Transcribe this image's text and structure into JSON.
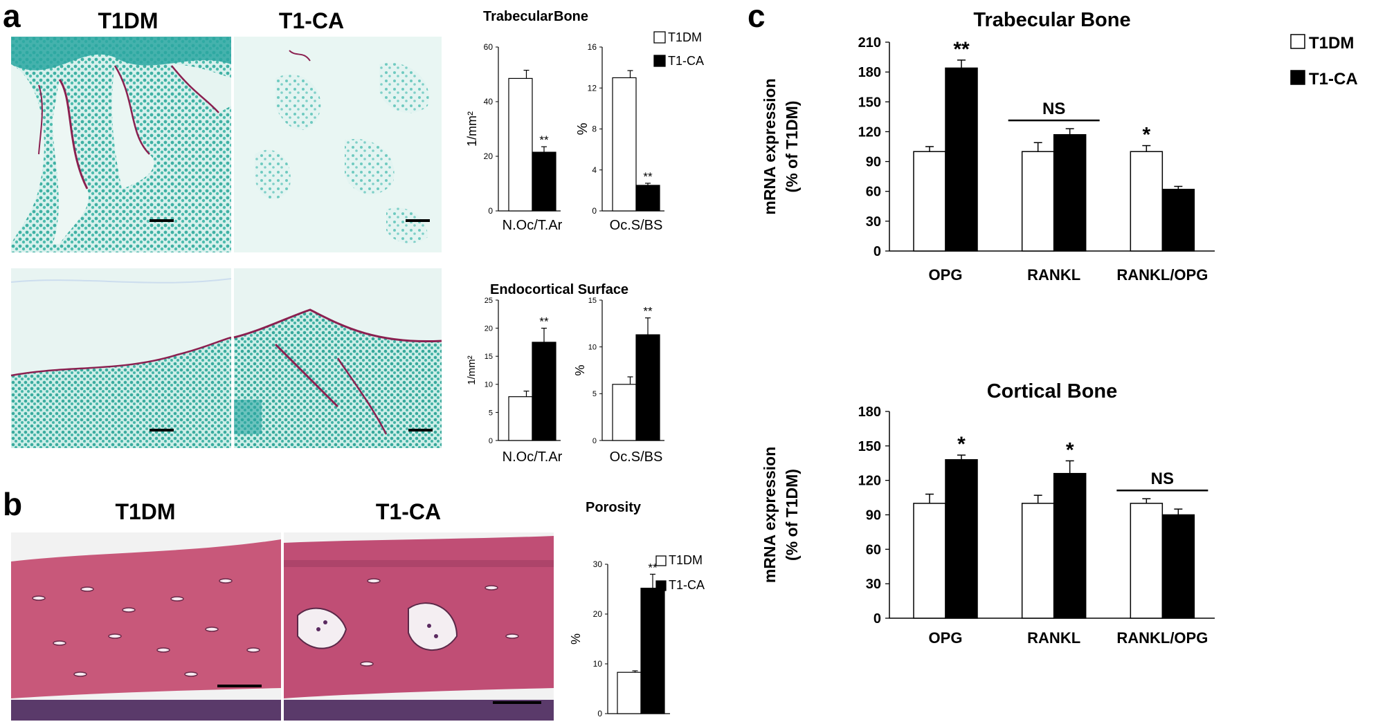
{
  "panels": {
    "a": {
      "letter": "a",
      "image_labels": [
        "T1DM",
        "T1-CA"
      ]
    },
    "b": {
      "letter": "b",
      "image_labels": [
        "T1DM",
        "T1-CA"
      ]
    },
    "c": {
      "letter": "c"
    }
  },
  "colors": {
    "T1DM": "#ffffff",
    "T1-CA": "#000000",
    "fast_green": "#7fd0c8",
    "safranin": "#8b2050",
    "he_pink": "#c8587a"
  },
  "chart_data": [
    {
      "id": "a-trab-noc",
      "type": "bar",
      "title": "Trabecular",
      "categories": [
        "N.Oc/T.Ar"
      ],
      "series": [
        {
          "name": "T1DM",
          "values": [
            48.5
          ],
          "errors": [
            3
          ]
        },
        {
          "name": "T1-CA",
          "values": [
            21.5
          ],
          "errors": [
            2
          ],
          "sig": [
            "**"
          ]
        }
      ],
      "ylabel": "1/mm²",
      "ylim": [
        0,
        60
      ],
      "yticks": [
        0,
        20,
        40,
        60
      ]
    },
    {
      "id": "a-trab-ocs",
      "type": "bar",
      "title": "Bone",
      "categories": [
        "Oc.S/BS"
      ],
      "series": [
        {
          "name": "T1DM",
          "values": [
            13
          ],
          "errors": [
            0.7
          ]
        },
        {
          "name": "T1-CA",
          "values": [
            2.5
          ],
          "errors": [
            0.2
          ],
          "sig": [
            "**"
          ]
        }
      ],
      "ylabel": "%",
      "ylim": [
        0,
        16
      ],
      "yticks": [
        0,
        4,
        8,
        12,
        16
      ],
      "legend": [
        "T1DM",
        "T1-CA"
      ]
    },
    {
      "id": "a-endo-noc",
      "type": "bar",
      "title": "Endocortical Surface",
      "categories": [
        "N.Oc/T.Ar"
      ],
      "series": [
        {
          "name": "T1DM",
          "values": [
            7.8
          ],
          "errors": [
            1
          ]
        },
        {
          "name": "T1-CA",
          "values": [
            17.5
          ],
          "errors": [
            2.5
          ],
          "sig": [
            "**"
          ]
        }
      ],
      "ylabel": "1/mm²",
      "ylim": [
        0,
        25
      ],
      "yticks": [
        0,
        5,
        10,
        15,
        20,
        25
      ]
    },
    {
      "id": "a-endo-ocs",
      "type": "bar",
      "title": "",
      "categories": [
        "Oc.S/BS"
      ],
      "series": [
        {
          "name": "T1DM",
          "values": [
            6
          ],
          "errors": [
            0.8
          ]
        },
        {
          "name": "T1-CA",
          "values": [
            11.3
          ],
          "errors": [
            1.8
          ],
          "sig": [
            "**"
          ]
        }
      ],
      "ylabel": "%",
      "ylim": [
        0,
        15
      ],
      "yticks": [
        0,
        5,
        10,
        15
      ]
    },
    {
      "id": "b-porosity",
      "type": "bar",
      "title": "Porosity",
      "categories": [
        ""
      ],
      "series": [
        {
          "name": "T1DM",
          "values": [
            8.3
          ],
          "errors": [
            0.3
          ]
        },
        {
          "name": "T1-CA",
          "values": [
            25.2
          ],
          "errors": [
            2.8
          ],
          "sig": [
            "**"
          ]
        }
      ],
      "ylabel": "%",
      "ylim": [
        0,
        30
      ],
      "yticks": [
        0,
        10,
        20,
        30
      ],
      "legend": [
        "T1DM",
        "T1-CA"
      ]
    },
    {
      "id": "c-trab",
      "type": "bar",
      "title": "Trabecular  Bone",
      "categories": [
        "OPG",
        "RANKL",
        "RANKL/OPG"
      ],
      "series": [
        {
          "name": "T1DM",
          "values": [
            100,
            100,
            100
          ],
          "errors": [
            5,
            9,
            6
          ],
          "sig": [
            "",
            "",
            "*"
          ]
        },
        {
          "name": "T1-CA",
          "values": [
            184,
            117,
            62
          ],
          "errors": [
            8,
            6,
            3
          ],
          "sig": [
            "**",
            "",
            ""
          ]
        }
      ],
      "ns_groups": [
        "RANKL"
      ],
      "ns_label": "NS",
      "ylabel_lines": [
        "mRNA expression",
        "(% of T1DM)"
      ],
      "ylim": [
        0,
        210
      ],
      "yticks": [
        0,
        30,
        60,
        90,
        120,
        150,
        180,
        210
      ],
      "legend": [
        "T1DM",
        "T1-CA"
      ]
    },
    {
      "id": "c-cort",
      "type": "bar",
      "title": "Cortical  Bone",
      "categories": [
        "OPG",
        "RANKL",
        "RANKL/OPG"
      ],
      "series": [
        {
          "name": "T1DM",
          "values": [
            100,
            100,
            100
          ],
          "errors": [
            8,
            7,
            4
          ]
        },
        {
          "name": "T1-CA",
          "values": [
            138,
            126,
            90
          ],
          "errors": [
            4,
            11,
            5
          ],
          "sig": [
            "*",
            "*",
            ""
          ]
        }
      ],
      "ns_groups": [
        "RANKL/OPG"
      ],
      "ns_label": "NS",
      "ylabel_lines": [
        "mRNA expression",
        "(% of T1DM)"
      ],
      "ylim": [
        0,
        180
      ],
      "yticks": [
        0,
        30,
        60,
        90,
        120,
        150,
        180
      ]
    }
  ]
}
